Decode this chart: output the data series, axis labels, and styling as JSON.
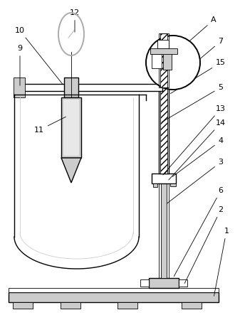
{
  "bg_color": "#ffffff",
  "line_color": "#000000",
  "gray_color": "#aaaaaa",
  "light_gray": "#cccccc",
  "dark_gray": "#888888",
  "fig_width": 3.3,
  "fig_height": 4.43,
  "dpi": 100
}
